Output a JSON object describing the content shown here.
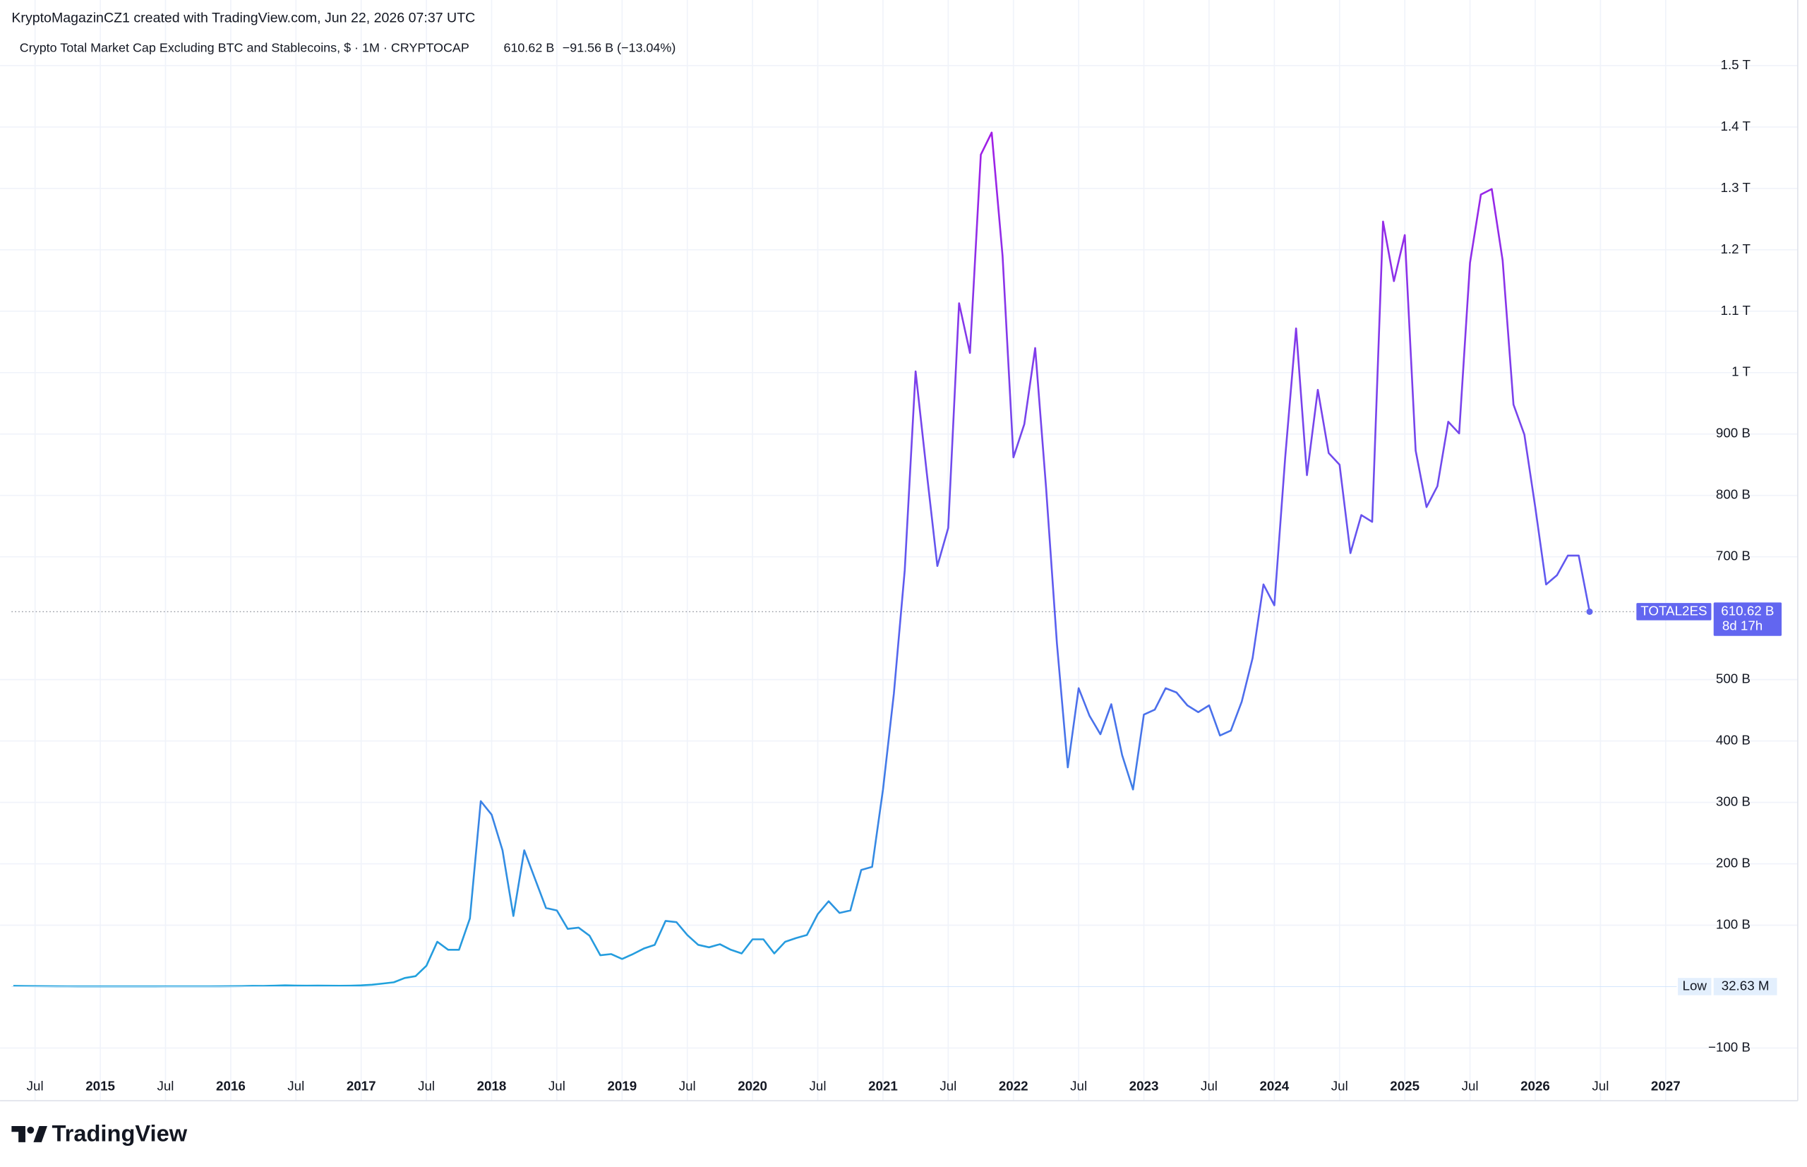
{
  "header": {
    "credit": "KryptoMagazinCZ1 created with TradingView.com, Jun 22, 2026 07:37 UTC",
    "brand": "TradingView"
  },
  "chart_data": {
    "type": "line",
    "title": "Crypto Total Market Cap Excluding BTC and Stablecoins, $ · 1M · CRYPTOCAP",
    "legend_value": "610.62 B",
    "legend_change": "−91.56 B (−13.04%)",
    "symbol": "TOTAL2ES",
    "last_label": "610.62 B",
    "countdown": "8d 17h",
    "low": {
      "label": "Low",
      "value": 0.03263,
      "value_label": "32.63 M"
    },
    "x": [
      "2014-05",
      "2014-06",
      "2014-07",
      "2014-08",
      "2014-09",
      "2014-10",
      "2014-11",
      "2014-12",
      "2015-01",
      "2015-02",
      "2015-03",
      "2015-04",
      "2015-05",
      "2015-06",
      "2015-07",
      "2015-08",
      "2015-09",
      "2015-10",
      "2015-11",
      "2015-12",
      "2016-01",
      "2016-02",
      "2016-03",
      "2016-04",
      "2016-05",
      "2016-06",
      "2016-07",
      "2016-08",
      "2016-09",
      "2016-10",
      "2016-11",
      "2016-12",
      "2017-01",
      "2017-02",
      "2017-03",
      "2017-04",
      "2017-05",
      "2017-06",
      "2017-07",
      "2017-08",
      "2017-09",
      "2017-10",
      "2017-11",
      "2017-12",
      "2018-01",
      "2018-02",
      "2018-03",
      "2018-04",
      "2018-05",
      "2018-06",
      "2018-07",
      "2018-08",
      "2018-09",
      "2018-10",
      "2018-11",
      "2018-12",
      "2019-01",
      "2019-02",
      "2019-03",
      "2019-04",
      "2019-05",
      "2019-06",
      "2019-07",
      "2019-08",
      "2019-09",
      "2019-10",
      "2019-11",
      "2019-12",
      "2020-01",
      "2020-02",
      "2020-03",
      "2020-04",
      "2020-05",
      "2020-06",
      "2020-07",
      "2020-08",
      "2020-09",
      "2020-10",
      "2020-11",
      "2020-12",
      "2021-01",
      "2021-02",
      "2021-03",
      "2021-04",
      "2021-05",
      "2021-06",
      "2021-07",
      "2021-08",
      "2021-09",
      "2021-10",
      "2021-11",
      "2021-12",
      "2022-01",
      "2022-02",
      "2022-03",
      "2022-04",
      "2022-05",
      "2022-06",
      "2022-07",
      "2022-08",
      "2022-09",
      "2022-10",
      "2022-11",
      "2022-12",
      "2023-01",
      "2023-02",
      "2023-03",
      "2023-04",
      "2023-05",
      "2023-06",
      "2023-07",
      "2023-08",
      "2023-09",
      "2023-10",
      "2023-11",
      "2023-12",
      "2024-01",
      "2024-02",
      "2024-03",
      "2024-04",
      "2024-05",
      "2024-06",
      "2024-07",
      "2024-08",
      "2024-09",
      "2024-10",
      "2024-11",
      "2024-12",
      "2025-01",
      "2025-02",
      "2025-03",
      "2025-04",
      "2025-05",
      "2025-06",
      "2025-07",
      "2025-08",
      "2025-09",
      "2025-10",
      "2025-11",
      "2025-12",
      "2026-01",
      "2026-02",
      "2026-03",
      "2026-04",
      "2026-05",
      "2026-06"
    ],
    "values": [
      1.2,
      0.9,
      0.8,
      0.6,
      0.5,
      0.4,
      0.3,
      0.3,
      0.3,
      0.3,
      0.3,
      0.3,
      0.3,
      0.3,
      0.4,
      0.4,
      0.4,
      0.4,
      0.4,
      0.5,
      0.6,
      0.8,
      1.2,
      1.1,
      1.5,
      2.0,
      1.6,
      1.5,
      1.6,
      1.4,
      1.3,
      1.5,
      2,
      3,
      5,
      7,
      14,
      17,
      34,
      73,
      60,
      60,
      111,
      302,
      280,
      222,
      115,
      222,
      175,
      128,
      124,
      94,
      96,
      83,
      51,
      53,
      45,
      53,
      62,
      68,
      107,
      105,
      84,
      68,
      64,
      69,
      60,
      54,
      77,
      77,
      54,
      73,
      79,
      84,
      118,
      139,
      120,
      124,
      190,
      195,
      321,
      477,
      678,
      1002,
      841,
      685,
      747,
      1113,
      1032,
      1355,
      1391,
      1190,
      862,
      916,
      1040,
      813,
      559,
      357,
      486,
      441,
      411,
      460,
      377,
      321,
      443,
      451,
      486,
      479,
      458,
      447,
      458,
      409,
      417,
      464,
      535,
      655,
      621,
      862,
      1072,
      833,
      972,
      869,
      850,
      706,
      768,
      757,
      1246,
      1149,
      1224,
      873,
      781,
      815,
      920,
      901,
      1179,
      1290,
      1299,
      1183,
      948,
      899,
      781,
      655,
      670,
      702,
      702,
      610.62
    ],
    "gradient": [
      {
        "value": 0,
        "color": "#1fa3dc"
      },
      {
        "value": 600,
        "color": "#5a5ff0"
      },
      {
        "value": 1400,
        "color": "#a21ee6"
      }
    ],
    "label_color": "#6266f0",
    "ylim": [
      -135.2,
      1522.4
    ],
    "yticks": [
      {
        "value": -100,
        "label": "−100 B"
      },
      {
        "value": 100,
        "label": "100 B"
      },
      {
        "value": 200,
        "label": "200 B"
      },
      {
        "value": 300,
        "label": "300 B"
      },
      {
        "value": 400,
        "label": "400 B"
      },
      {
        "value": 500,
        "label": "500 B"
      },
      {
        "value": 700,
        "label": "700 B"
      },
      {
        "value": 800,
        "label": "800 B"
      },
      {
        "value": 900,
        "label": "900 B"
      },
      {
        "value": 1000,
        "label": "1 T"
      },
      {
        "value": 1100,
        "label": "1.1 T"
      },
      {
        "value": 1200,
        "label": "1.2 T"
      },
      {
        "value": 1300,
        "label": "1.3 T"
      },
      {
        "value": 1400,
        "label": "1.4 T"
      },
      {
        "value": 1500,
        "label": "1.5 T"
      }
    ],
    "xticks": [
      {
        "value": "2014-07",
        "label": "Jul"
      },
      {
        "value": "2015-01",
        "label": "2015"
      },
      {
        "value": "2015-07",
        "label": "Jul"
      },
      {
        "value": "2016-01",
        "label": "2016"
      },
      {
        "value": "2016-07",
        "label": "Jul"
      },
      {
        "value": "2017-01",
        "label": "2017"
      },
      {
        "value": "2017-07",
        "label": "Jul"
      },
      {
        "value": "2018-01",
        "label": "2018"
      },
      {
        "value": "2018-07",
        "label": "Jul"
      },
      {
        "value": "2019-01",
        "label": "2019"
      },
      {
        "value": "2019-07",
        "label": "Jul"
      },
      {
        "value": "2020-01",
        "label": "2020"
      },
      {
        "value": "2020-07",
        "label": "Jul"
      },
      {
        "value": "2021-01",
        "label": "2021"
      },
      {
        "value": "2021-07",
        "label": "Jul"
      },
      {
        "value": "2022-01",
        "label": "2022"
      },
      {
        "value": "2022-07",
        "label": "Jul"
      },
      {
        "value": "2023-01",
        "label": "2023"
      },
      {
        "value": "2023-07",
        "label": "Jul"
      },
      {
        "value": "2024-01",
        "label": "2024"
      },
      {
        "value": "2024-07",
        "label": "Jul"
      },
      {
        "value": "2025-01",
        "label": "2025"
      },
      {
        "value": "2025-07",
        "label": "Jul"
      },
      {
        "value": "2026-01",
        "label": "2026"
      },
      {
        "value": "2026-07",
        "label": "Jul"
      },
      {
        "value": "2027-01",
        "label": "2027"
      }
    ],
    "grid": true
  }
}
